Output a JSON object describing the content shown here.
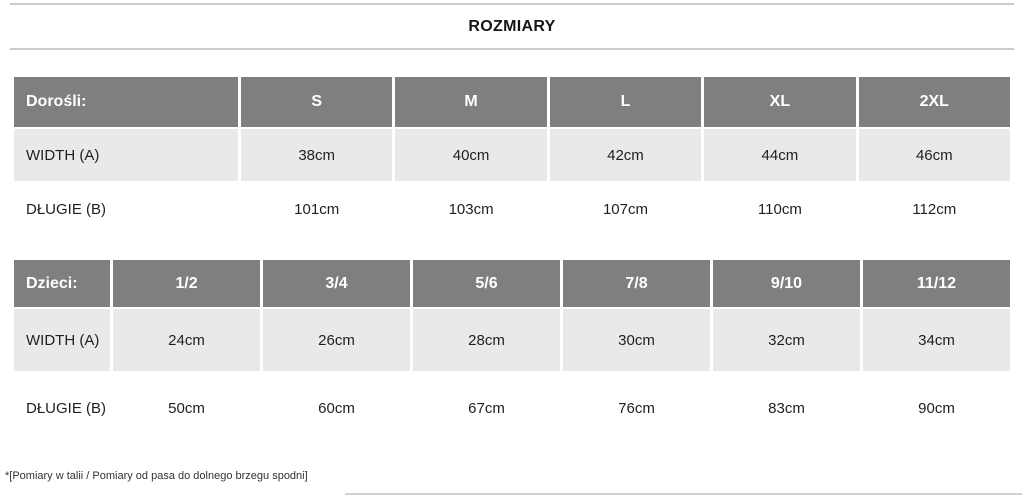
{
  "page": {
    "title": "ROZMIARY",
    "footnote": "*[Pomiary w talii / Pomiary od pasa do dolnego brzegu spodni]"
  },
  "colors": {
    "header_bg": "#7f7f7f",
    "header_text": "#ffffff",
    "row_shaded_bg": "#e9e9e9",
    "row_plain_bg": "#ffffff",
    "body_text": "#1f1f1f",
    "divider": "#cccccc"
  },
  "tables": [
    {
      "id": "adults",
      "label_header": "Dorośli:",
      "size_headers": [
        "S",
        "M",
        "L",
        "XL",
        "2XL"
      ],
      "rows": [
        {
          "label": "WIDTH (A)",
          "values": [
            "38cm",
            "40cm",
            "42cm",
            "44cm",
            "46cm"
          ]
        },
        {
          "label": "DŁUGIE (B)",
          "values": [
            "101cm",
            "103cm",
            "107cm",
            "110cm",
            "112cm"
          ]
        }
      ]
    },
    {
      "id": "kids",
      "label_header": "Dzieci:",
      "size_headers": [
        "1/2",
        "3/4",
        "5/6",
        "7/8",
        "9/10",
        "11/12"
      ],
      "rows": [
        {
          "label": "WIDTH (A)",
          "values": [
            "24cm",
            "26cm",
            "28cm",
            "30cm",
            "32cm",
            "34cm"
          ]
        },
        {
          "label": "DŁUGIE (B)",
          "values": [
            "50cm",
            "60cm",
            "67cm",
            "76cm",
            "83cm",
            "90cm"
          ]
        }
      ]
    }
  ]
}
